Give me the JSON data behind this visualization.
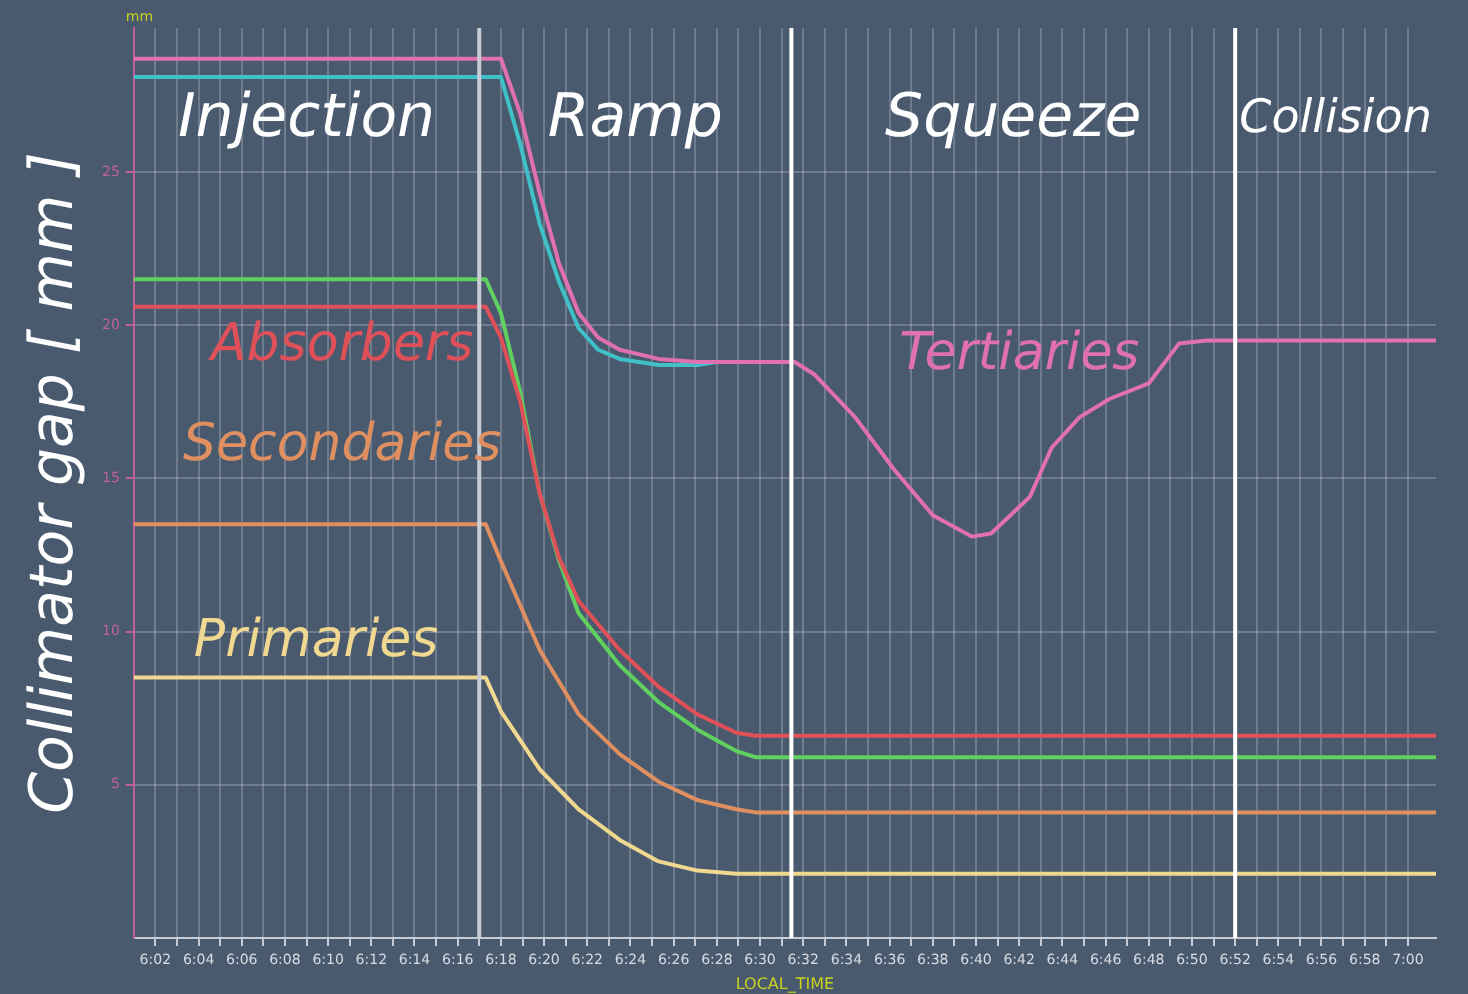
{
  "chart_data": {
    "type": "line",
    "ylabel": "Collimator gap [ mm ]",
    "xlabel": "LOCAL_TIME",
    "annotations": [
      "mm",
      "Injection",
      "Ramp",
      "Squeeze",
      "Collision"
    ],
    "xlim": [
      6.0167,
      7.0217
    ],
    "ylim": [
      0,
      29.7
    ],
    "yticks": [
      5,
      10,
      15,
      20,
      25
    ],
    "xticks": [
      {
        "value": 6.0333,
        "label": "6:02"
      },
      {
        "value": 6.05,
        "label": null
      },
      {
        "value": 6.0667,
        "label": "6:04"
      },
      {
        "value": 6.0833,
        "label": null
      },
      {
        "value": 6.1,
        "label": "6:06"
      },
      {
        "value": 6.1167,
        "label": null
      },
      {
        "value": 6.1333,
        "label": "6:08"
      },
      {
        "value": 6.15,
        "label": null
      },
      {
        "value": 6.1667,
        "label": "6:10"
      },
      {
        "value": 6.1833,
        "label": null
      },
      {
        "value": 6.2,
        "label": "6:12"
      },
      {
        "value": 6.2167,
        "label": null
      },
      {
        "value": 6.2333,
        "label": "6:14"
      },
      {
        "value": 6.25,
        "label": null
      },
      {
        "value": 6.2667,
        "label": "6:16"
      },
      {
        "value": 6.2833,
        "label": null
      },
      {
        "value": 6.3,
        "label": "6:18"
      },
      {
        "value": 6.3167,
        "label": null
      },
      {
        "value": 6.3333,
        "label": "6:20"
      },
      {
        "value": 6.35,
        "label": null
      },
      {
        "value": 6.3667,
        "label": "6:22"
      },
      {
        "value": 6.3833,
        "label": null
      },
      {
        "value": 6.4,
        "label": "6:24"
      },
      {
        "value": 6.4167,
        "label": null
      },
      {
        "value": 6.4333,
        "label": "6:26"
      },
      {
        "value": 6.45,
        "label": null
      },
      {
        "value": 6.4667,
        "label": "6:28"
      },
      {
        "value": 6.4833,
        "label": null
      },
      {
        "value": 6.5,
        "label": "6:30"
      },
      {
        "value": 6.5167,
        "label": null
      },
      {
        "value": 6.5333,
        "label": "6:32"
      },
      {
        "value": 6.55,
        "label": null
      },
      {
        "value": 6.5667,
        "label": "6:34"
      },
      {
        "value": 6.5833,
        "label": null
      },
      {
        "value": 6.6,
        "label": "6:36"
      },
      {
        "value": 6.6167,
        "label": null
      },
      {
        "value": 6.6333,
        "label": "6:38"
      },
      {
        "value": 6.65,
        "label": null
      },
      {
        "value": 6.6667,
        "label": "6:40"
      },
      {
        "value": 6.6833,
        "label": null
      },
      {
        "value": 6.7,
        "label": "6:42"
      },
      {
        "value": 6.7167,
        "label": null
      },
      {
        "value": 6.7333,
        "label": "6:44"
      },
      {
        "value": 6.75,
        "label": null
      },
      {
        "value": 6.7667,
        "label": "6:46"
      },
      {
        "value": 6.7833,
        "label": null
      },
      {
        "value": 6.8,
        "label": "6:48"
      },
      {
        "value": 6.8167,
        "label": null
      },
      {
        "value": 6.8333,
        "label": "6:50"
      },
      {
        "value": 6.85,
        "label": null
      },
      {
        "value": 6.8667,
        "label": "6:52"
      },
      {
        "value": 6.8833,
        "label": null
      },
      {
        "value": 6.9,
        "label": "6:54"
      },
      {
        "value": 6.9167,
        "label": null
      },
      {
        "value": 6.9333,
        "label": "6:56"
      },
      {
        "value": 6.95,
        "label": null
      },
      {
        "value": 6.9667,
        "label": "6:58"
      },
      {
        "value": 6.9833,
        "label": null
      },
      {
        "value": 7.0,
        "label": "7:00"
      }
    ],
    "grid": true,
    "legend": false,
    "marker": "none",
    "line_style": "solid",
    "ref_lines": [
      {
        "axis": "x",
        "value": 6.2833,
        "color": "#c8ccd4"
      },
      {
        "axis": "x",
        "value": 6.5242,
        "color": "#ffffff"
      },
      {
        "axis": "x",
        "value": 6.8667,
        "color": "#ffffff"
      }
    ],
    "series": [
      {
        "color": "#40c0c8",
        "x": [
          6.0167,
          6.3,
          6.315,
          6.33,
          6.345,
          6.36,
          6.375,
          6.3917,
          6.4217,
          6.4517,
          6.4667
        ],
        "values": [
          28.1,
          28.1,
          25.9,
          23.3,
          21.4,
          19.9,
          19.2,
          18.9,
          18.7,
          18.7,
          18.8
        ]
      },
      {
        "name": "Tertiaries",
        "color": "#e070b0",
        "x": [
          6.0167,
          6.3,
          6.315,
          6.33,
          6.345,
          6.36,
          6.375,
          6.3917,
          6.4217,
          6.4517,
          6.5267,
          6.5417,
          6.5733,
          6.6033,
          6.6333,
          6.6633,
          6.6783,
          6.6933,
          6.7083,
          6.725,
          6.7467,
          6.77,
          6.8,
          6.8233,
          6.845,
          7.0217
        ],
        "values": [
          28.7,
          28.7,
          26.9,
          24.3,
          22.0,
          20.4,
          19.6,
          19.2,
          18.9,
          18.8,
          18.8,
          18.4,
          17.0,
          15.3,
          13.8,
          13.1,
          13.2,
          13.8,
          14.4,
          16.0,
          17.0,
          17.6,
          18.1,
          19.4,
          19.5,
          19.5
        ]
      },
      {
        "color": "#60d060",
        "x": [
          6.0167,
          6.2883,
          6.3,
          6.315,
          6.33,
          6.345,
          6.36,
          6.3917,
          6.4217,
          6.4517,
          6.4817,
          6.4967,
          7.0217
        ],
        "values": [
          21.5,
          21.5,
          20.4,
          17.8,
          14.5,
          12.3,
          10.6,
          8.9,
          7.7,
          6.8,
          6.1,
          5.9,
          5.9
        ]
      },
      {
        "name": "Absorbers",
        "color": "#e05058",
        "x": [
          6.0167,
          6.2883,
          6.3,
          6.315,
          6.33,
          6.345,
          6.36,
          6.3917,
          6.4217,
          6.4517,
          6.4817,
          6.4967,
          7.0217
        ],
        "values": [
          20.6,
          20.6,
          19.6,
          17.5,
          14.5,
          12.4,
          11.0,
          9.4,
          8.2,
          7.3,
          6.7,
          6.6,
          6.6
        ]
      },
      {
        "name": "Secondaries",
        "color": "#e09060",
        "x": [
          6.0167,
          6.2883,
          6.3,
          6.33,
          6.36,
          6.3917,
          6.4217,
          6.4517,
          6.4817,
          6.4967,
          7.0217
        ],
        "values": [
          13.5,
          13.5,
          12.3,
          9.4,
          7.3,
          6.0,
          5.1,
          4.5,
          4.2,
          4.1,
          4.1
        ]
      },
      {
        "name": "Primaries",
        "color": "#f0d890",
        "x": [
          6.0167,
          6.2883,
          6.3,
          6.33,
          6.36,
          6.3917,
          6.4217,
          6.4517,
          6.4817,
          7.0217
        ],
        "values": [
          8.5,
          8.5,
          7.4,
          5.5,
          4.2,
          3.2,
          2.5,
          2.2,
          2.1,
          2.1
        ]
      }
    ]
  }
}
